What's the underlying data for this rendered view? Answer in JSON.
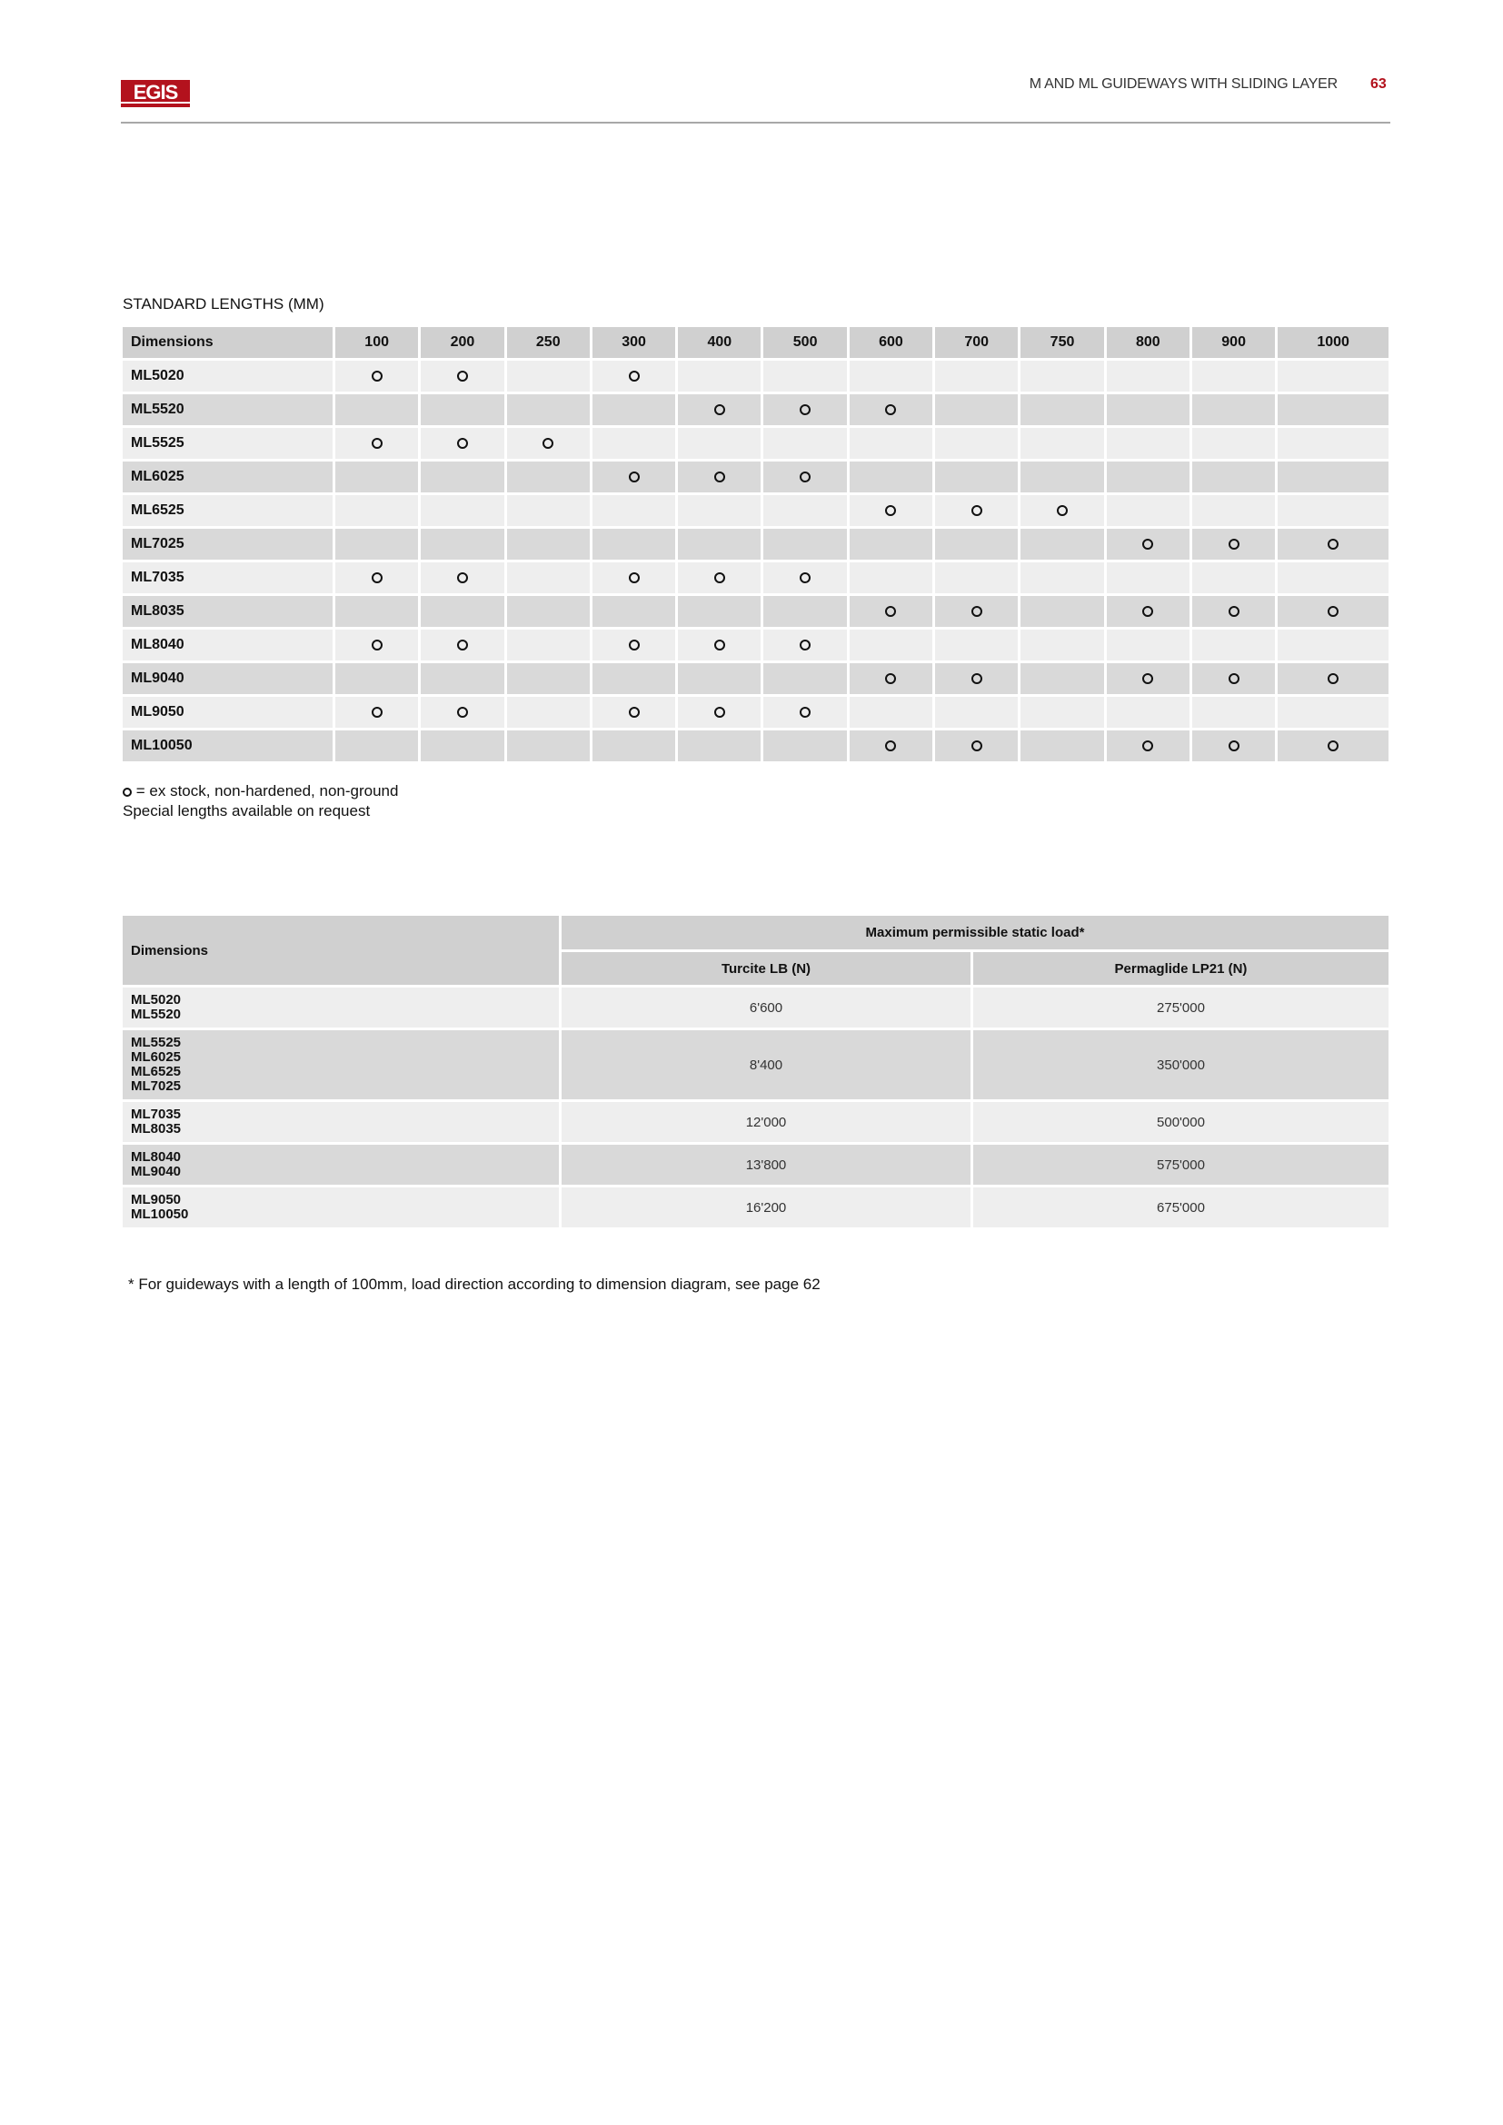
{
  "header": {
    "logo_text": "EGIS",
    "brand_color": "#b3121d",
    "title": "M AND ML GUIDEWAYS WITH SLIDING LAYER",
    "page_number": "63"
  },
  "standard_lengths": {
    "title": "STANDARD LENGTHS (MM)",
    "first_header": "Dimensions",
    "lengths": [
      "100",
      "200",
      "250",
      "300",
      "400",
      "500",
      "600",
      "700",
      "750",
      "800",
      "900",
      "1000"
    ],
    "rows": [
      {
        "name": "ML5020",
        "available": [
          "100",
          "200",
          "300"
        ]
      },
      {
        "name": "ML5520",
        "available": [
          "400",
          "500",
          "600"
        ]
      },
      {
        "name": "ML5525",
        "available": [
          "100",
          "200",
          "250"
        ]
      },
      {
        "name": "ML6025",
        "available": [
          "300",
          "400",
          "500"
        ]
      },
      {
        "name": "ML6525",
        "available": [
          "600",
          "700",
          "750"
        ]
      },
      {
        "name": "ML7025",
        "available": [
          "800",
          "900",
          "1000"
        ]
      },
      {
        "name": "ML7035",
        "available": [
          "100",
          "200",
          "300",
          "400",
          "500"
        ]
      },
      {
        "name": "ML8035",
        "available": [
          "600",
          "700",
          "800",
          "900",
          "1000"
        ]
      },
      {
        "name": "ML8040",
        "available": [
          "100",
          "200",
          "300",
          "400",
          "500"
        ]
      },
      {
        "name": "ML9040",
        "available": [
          "600",
          "700",
          "800",
          "900",
          "1000"
        ]
      },
      {
        "name": "ML9050",
        "available": [
          "100",
          "200",
          "300",
          "400",
          "500"
        ]
      },
      {
        "name": "ML10050",
        "available": [
          "600",
          "700",
          "800",
          "900",
          "1000"
        ]
      }
    ],
    "legend_symbol": "circle-o",
    "legend_text": "= ex stock, non-hardened, non-ground",
    "note": "Special lengths available on request"
  },
  "static_load": {
    "first_header": "Dimensions",
    "group_header": "Maximum permissible static load*",
    "columns": [
      "Turcite LB (N)",
      "Permaglide LP21 (N)"
    ],
    "rows": [
      {
        "dims": [
          "ML5020",
          "ML5520"
        ],
        "values": [
          "6'600",
          "275'000"
        ]
      },
      {
        "dims": [
          "ML5525",
          "ML6025",
          "ML6525",
          "ML7025"
        ],
        "values": [
          "8'400",
          "350'000"
        ]
      },
      {
        "dims": [
          "ML7035",
          "ML8035"
        ],
        "values": [
          "12'000",
          "500'000"
        ]
      },
      {
        "dims": [
          "ML8040",
          "ML9040"
        ],
        "values": [
          "13'800",
          "575'000"
        ]
      },
      {
        "dims": [
          "ML9050",
          "ML10050"
        ],
        "values": [
          "16'200",
          "675'000"
        ]
      }
    ],
    "footnote": "* For guideways with a length of 100mm, load direction according to dimension diagram, see page 62"
  }
}
